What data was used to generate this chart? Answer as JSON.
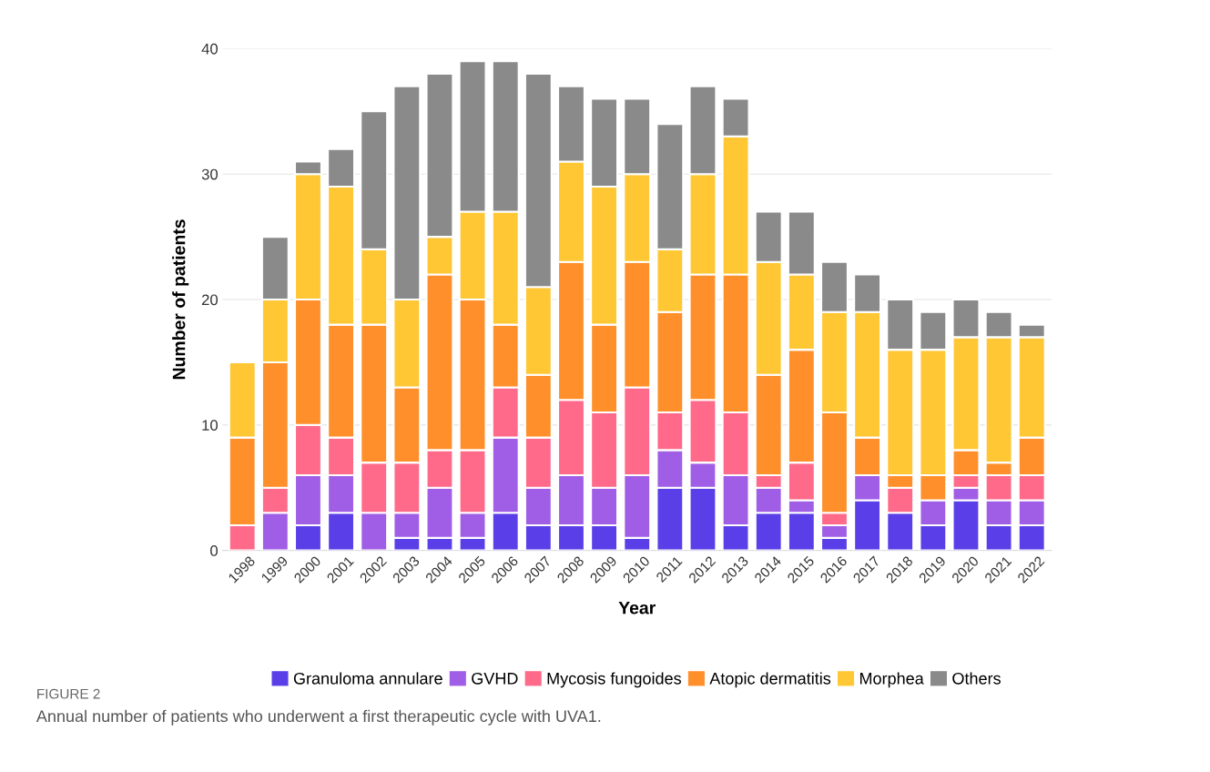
{
  "chart_data": {
    "type": "bar",
    "stacked": true,
    "xlabel": "Year",
    "ylabel": "Number of patients",
    "categories": [
      "1998",
      "1999",
      "2000",
      "2001",
      "2002",
      "2003",
      "2004",
      "2005",
      "2006",
      "2007",
      "2008",
      "2009",
      "2010",
      "2011",
      "2012",
      "2013",
      "2014",
      "2015",
      "2016",
      "2017",
      "2018",
      "2019",
      "2020",
      "2021",
      "2022"
    ],
    "series": [
      {
        "name": "Granuloma annulare",
        "color": "#5a3ee8",
        "values": [
          0,
          0,
          2,
          3,
          0,
          1,
          1,
          1,
          3,
          2,
          2,
          2,
          1,
          5,
          5,
          2,
          3,
          3,
          1,
          4,
          3,
          2,
          4,
          2,
          2
        ]
      },
      {
        "name": "GVHD",
        "color": "#a05ee6",
        "values": [
          0,
          3,
          4,
          3,
          3,
          2,
          4,
          2,
          6,
          3,
          4,
          3,
          5,
          3,
          2,
          4,
          2,
          1,
          1,
          2,
          0,
          2,
          1,
          2,
          2
        ]
      },
      {
        "name": "Mycosis fungoides",
        "color": "#ff6a8a",
        "values": [
          2,
          2,
          4,
          3,
          4,
          4,
          3,
          5,
          4,
          4,
          6,
          6,
          7,
          3,
          5,
          5,
          1,
          3,
          1,
          0,
          2,
          0,
          1,
          2,
          2
        ]
      },
      {
        "name": "Atopic dermatitis",
        "color": "#ff8f2a",
        "values": [
          7,
          10,
          10,
          9,
          11,
          6,
          14,
          12,
          5,
          5,
          11,
          7,
          10,
          8,
          10,
          11,
          8,
          9,
          8,
          3,
          1,
          2,
          2,
          1,
          3
        ]
      },
      {
        "name": "Morphea",
        "color": "#ffc733",
        "values": [
          6,
          5,
          10,
          11,
          6,
          7,
          3,
          7,
          9,
          7,
          8,
          11,
          7,
          5,
          8,
          11,
          9,
          6,
          8,
          10,
          10,
          10,
          9,
          10,
          8
        ]
      },
      {
        "name": "Others",
        "color": "#8a8a8a",
        "values": [
          0,
          5,
          1,
          3,
          11,
          17,
          13,
          12,
          12,
          17,
          6,
          7,
          6,
          10,
          7,
          3,
          4,
          5,
          4,
          3,
          4,
          3,
          3,
          2,
          1
        ]
      }
    ],
    "ylim": [
      0,
      40
    ],
    "yticks": [
      0,
      10,
      20,
      30,
      40
    ],
    "grid": "y",
    "legend": "bottom",
    "annotations": [
      "FIGURE 2",
      "Annual number of patients who underwent a first therapeutic cycle with UVA1."
    ]
  }
}
